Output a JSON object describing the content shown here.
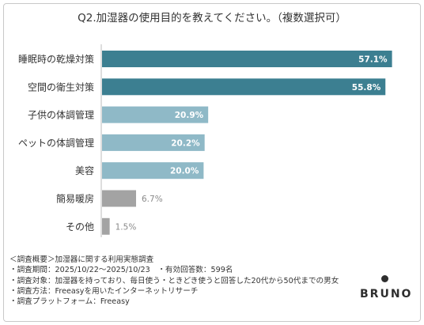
{
  "chart_data": {
    "type": "bar",
    "orientation": "horizontal",
    "title": "Q2.加湿器の使用目的を教えてください。（複数選択可）",
    "categories": [
      "睡眠時の乾燥対策",
      "空間の衛生対策",
      "子供の体調管理",
      "ペットの体調管理",
      "美容",
      "簡易暖房",
      "その他"
    ],
    "values": [
      57.1,
      55.8,
      20.9,
      20.2,
      20.0,
      6.7,
      1.5
    ],
    "value_labels": [
      "57.1%",
      "55.8%",
      "20.9%",
      "20.2%",
      "20.0%",
      "6.7%",
      "1.5%"
    ],
    "bar_colors": [
      "#3c7f91",
      "#3c7f91",
      "#8fb9c7",
      "#8fb9c7",
      "#8fb9c7",
      "#a3a3a3",
      "#a3a3a3"
    ],
    "xlim": [
      0,
      60
    ],
    "grid": false,
    "legend": "none"
  },
  "notes": [
    "＜調査概要＞加湿器に関する利用実態調査",
    "・調査期間：2025/10/22～2025/10/23　・有効回答数：599名",
    "・調査対象：加湿器を持っており、毎日使う・ときどき使うと回答した20代から50代までの男女",
    "・調査方法：Freeasyを用いたインターネットリサーチ",
    "・調査プラットフォーム：Freeasy"
  ],
  "brand": "BRUNO"
}
